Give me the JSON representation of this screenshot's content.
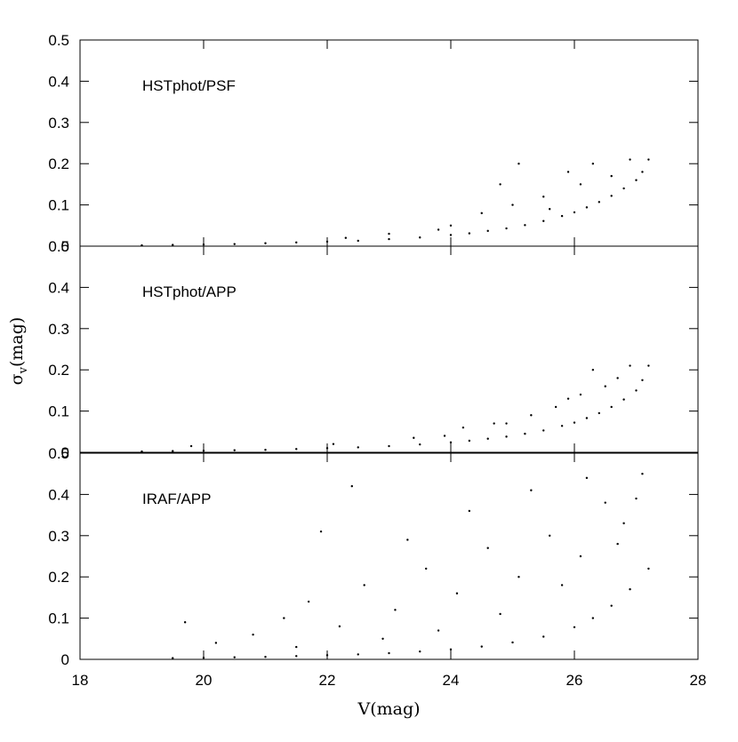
{
  "chart_data": [
    {
      "type": "scatter",
      "annotation": "HSTphot/PSF",
      "color": "#000000",
      "xlim": [
        18,
        28
      ],
      "ylim": [
        0,
        0.5
      ],
      "yticks": [
        0,
        0.1,
        0.2,
        0.3,
        0.4,
        0.5
      ],
      "x": [
        19,
        19.5,
        20,
        20.5,
        21,
        21.5,
        22,
        22.5,
        23,
        23.5,
        24,
        24.3,
        24.6,
        24.9,
        25.2,
        25.5,
        25.8,
        26,
        26.2,
        26.4,
        26.6,
        26.8,
        27,
        27.1,
        27.2,
        22.3,
        23,
        24.5,
        24.8,
        25.1,
        25.5,
        25.9,
        26.3,
        26.6,
        26.9,
        24,
        25,
        23.8,
        25.6,
        26.1
      ],
      "y": [
        0.002,
        0.003,
        0.004,
        0.005,
        0.007,
        0.009,
        0.011,
        0.013,
        0.017,
        0.021,
        0.027,
        0.031,
        0.037,
        0.043,
        0.051,
        0.061,
        0.073,
        0.082,
        0.094,
        0.107,
        0.122,
        0.14,
        0.16,
        0.18,
        0.21,
        0.02,
        0.03,
        0.08,
        0.15,
        0.2,
        0.12,
        0.18,
        0.2,
        0.17,
        0.21,
        0.05,
        0.1,
        0.04,
        0.09,
        0.15
      ]
    },
    {
      "type": "scatter",
      "annotation": "HSTphot/APP",
      "color": "#000000",
      "xlim": [
        18,
        28
      ],
      "ylim": [
        0,
        0.5
      ],
      "yticks": [
        0,
        0.1,
        0.2,
        0.3,
        0.4,
        0.5
      ],
      "x": [
        19,
        19.5,
        20,
        20.5,
        21,
        21.5,
        22,
        22.5,
        23,
        23.5,
        24,
        24.3,
        24.6,
        24.9,
        25.2,
        25.5,
        25.8,
        26,
        26.2,
        26.4,
        26.6,
        26.8,
        27,
        27.1,
        27.2,
        19.8,
        22.1,
        23.4,
        24.2,
        24.7,
        25.3,
        25.7,
        26.1,
        26.3,
        26.5,
        26.7,
        26.9,
        25.9,
        24.9,
        23.9
      ],
      "y": [
        0.002,
        0.003,
        0.004,
        0.005,
        0.006,
        0.008,
        0.01,
        0.012,
        0.015,
        0.019,
        0.024,
        0.028,
        0.033,
        0.038,
        0.045,
        0.053,
        0.064,
        0.072,
        0.083,
        0.095,
        0.11,
        0.128,
        0.15,
        0.175,
        0.21,
        0.015,
        0.02,
        0.035,
        0.06,
        0.07,
        0.09,
        0.11,
        0.14,
        0.2,
        0.16,
        0.18,
        0.21,
        0.13,
        0.07,
        0.04
      ]
    },
    {
      "type": "scatter",
      "annotation": "IRAF/APP",
      "color": "#000000",
      "xlim": [
        18,
        28
      ],
      "ylim": [
        0,
        0.5
      ],
      "yticks": [
        0,
        0.1,
        0.2,
        0.3,
        0.4,
        0.5
      ],
      "xlabel": "V(mag)",
      "xticks": [
        18,
        20,
        22,
        24,
        26,
        28
      ],
      "x": [
        19.5,
        20,
        20.5,
        21,
        21.5,
        22,
        22.5,
        23,
        23.5,
        24,
        24.5,
        25,
        25.5,
        26,
        26.3,
        26.6,
        26.9,
        27.2,
        19.7,
        20.2,
        20.8,
        21.3,
        21.7,
        22.2,
        22.6,
        23.1,
        23.6,
        24.1,
        24.6,
        25.1,
        25.6,
        26.1,
        26.5,
        26.8,
        27.1,
        21.9,
        22.4,
        23.3,
        24.3,
        25.3,
        25.8,
        26.2,
        26.7,
        27,
        24.8,
        23.8,
        22.9,
        21.5
      ],
      "y": [
        0.003,
        0.004,
        0.005,
        0.006,
        0.008,
        0.01,
        0.012,
        0.015,
        0.019,
        0.024,
        0.031,
        0.041,
        0.055,
        0.078,
        0.1,
        0.13,
        0.17,
        0.22,
        0.09,
        0.04,
        0.06,
        0.1,
        0.14,
        0.08,
        0.18,
        0.12,
        0.22,
        0.16,
        0.27,
        0.2,
        0.3,
        0.25,
        0.38,
        0.33,
        0.45,
        0.31,
        0.42,
        0.29,
        0.36,
        0.41,
        0.18,
        0.44,
        0.28,
        0.39,
        0.11,
        0.07,
        0.05,
        0.03
      ]
    }
  ],
  "ylabel": [
    "σ",
    "v",
    "(mag)"
  ]
}
